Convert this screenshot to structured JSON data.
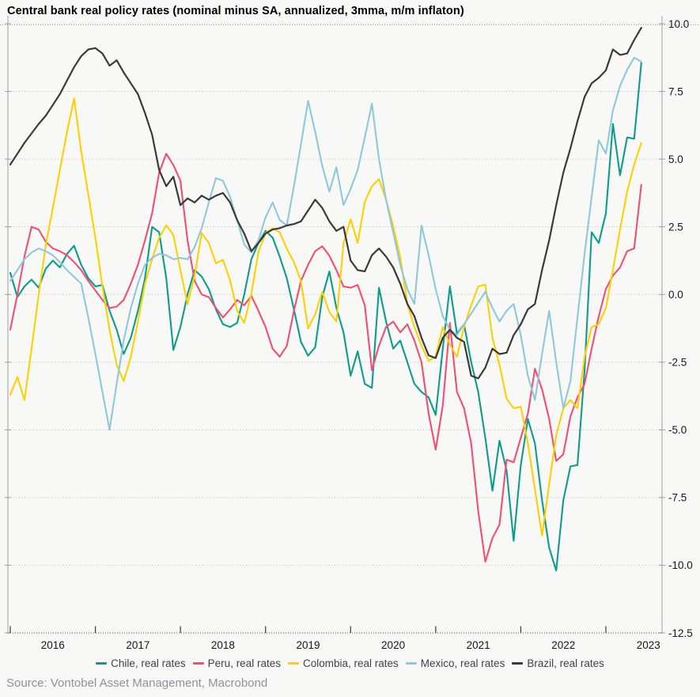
{
  "title": "Central bank real policy rates (nominal minus SA, annualized, 3mma, m/m inflaton)",
  "source": "Source: Vontobel Asset Management, Macrobond",
  "colors": {
    "background": "#f8f8f6",
    "gridline": "#bdbdbd",
    "axis_frame": "#9aa0a5",
    "bottom_axis": "#454545",
    "tick_label": "#15171c",
    "legend_text": "#3d434b",
    "source_text": "#8d939c"
  },
  "chart_data": {
    "type": "line",
    "title": "Central bank real policy rates (nominal minus SA, annualized, 3mma, m/m inflaton)",
    "x_unit": "month",
    "x_start": "2016-01",
    "x_end": "2023-06",
    "x_tick_labels": [
      "2016",
      "2017",
      "2018",
      "2019",
      "2020",
      "2021",
      "2022",
      "2023"
    ],
    "y_tick_labels": [
      "10.0",
      "7.5",
      "5.0",
      "2.5",
      "0.0",
      "-2.5",
      "-5.0",
      "-7.5",
      "-10.0",
      "-12.5"
    ],
    "ylim": [
      -12.5,
      10.3
    ],
    "grid": "horizontal-dotted",
    "legend_position": "bottom-center",
    "series": [
      {
        "name": "Chile, real rates",
        "color": "#0d9b8b",
        "values": [
          0.8,
          -0.1,
          0.3,
          0.55,
          0.25,
          0.95,
          1.25,
          1.0,
          1.5,
          1.8,
          1.1,
          0.6,
          0.3,
          0.35,
          -0.6,
          -1.3,
          -2.2,
          -1.6,
          -0.6,
          0.6,
          2.5,
          2.3,
          0.6,
          -2.05,
          -1.2,
          0.0,
          0.9,
          0.66,
          0.2,
          -0.55,
          -1.1,
          -1.2,
          -1.05,
          0.0,
          1.3,
          1.9,
          2.35,
          2.1,
          1.4,
          0.6,
          -0.55,
          -1.75,
          -2.26,
          -1.95,
          -0.1,
          0.85,
          -0.5,
          -1.4,
          -3.0,
          -2.1,
          -3.3,
          -3.45,
          0.25,
          -1.0,
          -2.0,
          -1.7,
          -2.5,
          -3.3,
          -3.6,
          -3.8,
          -4.45,
          -2.0,
          0.3,
          -1.45,
          -1.1,
          -2.5,
          -3.6,
          -5.3,
          -7.25,
          -5.4,
          -6.5,
          -9.1,
          -6.3,
          -4.6,
          -5.5,
          -7.6,
          -9.35,
          -10.2,
          -7.6,
          -6.35,
          -6.3,
          -2.8,
          2.3,
          1.9,
          3.0,
          6.3,
          4.4,
          5.8,
          5.75,
          8.55
        ]
      },
      {
        "name": "Peru, real rates",
        "color": "#ee4f76",
        "values": [
          -1.3,
          0.0,
          1.4,
          2.5,
          2.4,
          1.95,
          1.7,
          1.6,
          1.45,
          1.2,
          0.9,
          0.5,
          0.15,
          -0.2,
          -0.5,
          -0.45,
          -0.2,
          0.4,
          1.1,
          2.0,
          3.0,
          4.5,
          5.2,
          4.78,
          4.2,
          2.0,
          0.5,
          0.0,
          -0.1,
          -0.5,
          -0.85,
          -0.55,
          -0.2,
          -0.4,
          -0.05,
          -0.6,
          -1.2,
          -2.0,
          -2.3,
          -1.9,
          -0.6,
          0.5,
          1.1,
          1.6,
          1.78,
          1.43,
          0.9,
          0.3,
          0.25,
          0.35,
          -0.4,
          -2.8,
          -1.9,
          -1.2,
          -1.0,
          -1.4,
          -1.1,
          -1.7,
          -2.5,
          -4.4,
          -5.73,
          -4.1,
          -1.05,
          -3.6,
          -4.2,
          -5.5,
          -8.0,
          -9.87,
          -9.0,
          -8.5,
          -6.1,
          -6.2,
          -5.3,
          -4.4,
          -2.74,
          -3.5,
          -4.6,
          -6.15,
          -5.9,
          -4.5,
          -3.8,
          -3.3,
          -2.0,
          -0.8,
          0.2,
          0.7,
          1.0,
          1.6,
          1.7,
          4.05
        ]
      },
      {
        "name": "Colombia, real rates",
        "color": "#fdd005",
        "values": [
          -3.7,
          -3.05,
          -3.9,
          -2.0,
          0.0,
          1.8,
          3.2,
          4.6,
          6.0,
          7.25,
          5.3,
          3.7,
          2.1,
          0.3,
          -1.3,
          -2.6,
          -3.2,
          -2.3,
          -1.0,
          0.4,
          1.3,
          2.1,
          2.55,
          2.2,
          0.9,
          -0.35,
          0.7,
          2.27,
          1.9,
          1.15,
          1.28,
          0.52,
          -0.6,
          -1.05,
          0.03,
          1.57,
          2.27,
          2.45,
          2.3,
          1.69,
          1.2,
          0.5,
          -1.26,
          -0.73,
          0.1,
          -0.65,
          -1.0,
          1.9,
          2.78,
          1.9,
          3.42,
          4.0,
          4.26,
          3.5,
          2.53,
          1.38,
          -0.35,
          -1.2,
          -1.9,
          -2.45,
          -2.3,
          -1.2,
          -1.85,
          -2.3,
          -1.2,
          -0.4,
          0.3,
          0.36,
          -1.6,
          -2.6,
          -3.85,
          -4.2,
          -4.15,
          -5.5,
          -7.2,
          -8.9,
          -7.0,
          -5.2,
          -4.2,
          -3.9,
          -4.2,
          -2.3,
          -1.2,
          -1.1,
          -0.5,
          0.9,
          2.4,
          3.8,
          4.8,
          5.6
        ]
      },
      {
        "name": "Mexico, real rates",
        "color": "#8fc8da",
        "values": [
          0.5,
          0.9,
          1.3,
          1.55,
          1.7,
          1.6,
          1.45,
          1.2,
          0.9,
          0.65,
          0.4,
          -0.85,
          -2.2,
          -3.6,
          -5.0,
          -3.3,
          -1.7,
          -0.5,
          0.4,
          1.1,
          1.35,
          1.5,
          1.45,
          1.3,
          1.35,
          1.3,
          1.75,
          2.45,
          3.4,
          4.3,
          4.2,
          3.6,
          2.75,
          1.85,
          1.55,
          2.0,
          2.85,
          3.4,
          2.75,
          2.55,
          4.0,
          5.55,
          7.15,
          6.0,
          4.75,
          3.8,
          4.7,
          3.3,
          3.9,
          4.6,
          5.8,
          7.05,
          5.0,
          3.5,
          2.3,
          1.1,
          0.2,
          -0.35,
          2.55,
          1.45,
          0.2,
          -0.8,
          -1.3,
          -1.5,
          -1.1,
          -0.7,
          -0.3,
          0.1,
          -0.5,
          -1.0,
          -0.6,
          -0.35,
          -1.5,
          -3.0,
          -3.9,
          -2.2,
          -0.6,
          -2.5,
          -4.2,
          -3.2,
          -0.85,
          1.5,
          3.6,
          5.7,
          5.2,
          6.8,
          7.7,
          8.3,
          8.75,
          8.6
        ]
      },
      {
        "name": "Brazil, real rates",
        "color": "#3a3a3a",
        "values": [
          4.8,
          5.2,
          5.6,
          5.95,
          6.3,
          6.6,
          7.0,
          7.4,
          7.9,
          8.4,
          8.8,
          9.05,
          9.1,
          8.9,
          8.45,
          8.65,
          8.2,
          7.8,
          7.4,
          6.7,
          5.9,
          4.6,
          4.0,
          4.35,
          3.3,
          3.55,
          3.4,
          3.65,
          3.5,
          3.65,
          3.75,
          3.4,
          2.75,
          2.25,
          1.6,
          1.9,
          2.25,
          2.4,
          2.45,
          2.55,
          2.6,
          2.7,
          3.1,
          3.5,
          3.2,
          2.7,
          2.35,
          2.5,
          1.25,
          0.9,
          0.85,
          1.45,
          1.7,
          1.4,
          1.0,
          0.4,
          -0.35,
          -0.8,
          -1.6,
          -2.25,
          -2.35,
          -1.6,
          -1.3,
          -1.6,
          -1.75,
          -3.0,
          -3.1,
          -2.7,
          -2.0,
          -2.2,
          -2.15,
          -1.5,
          -1.1,
          -0.55,
          -0.35,
          0.9,
          2.0,
          3.3,
          4.5,
          5.4,
          6.4,
          7.3,
          7.8,
          8.0,
          8.28,
          9.05,
          8.85,
          8.9,
          9.4,
          9.85
        ]
      }
    ]
  }
}
